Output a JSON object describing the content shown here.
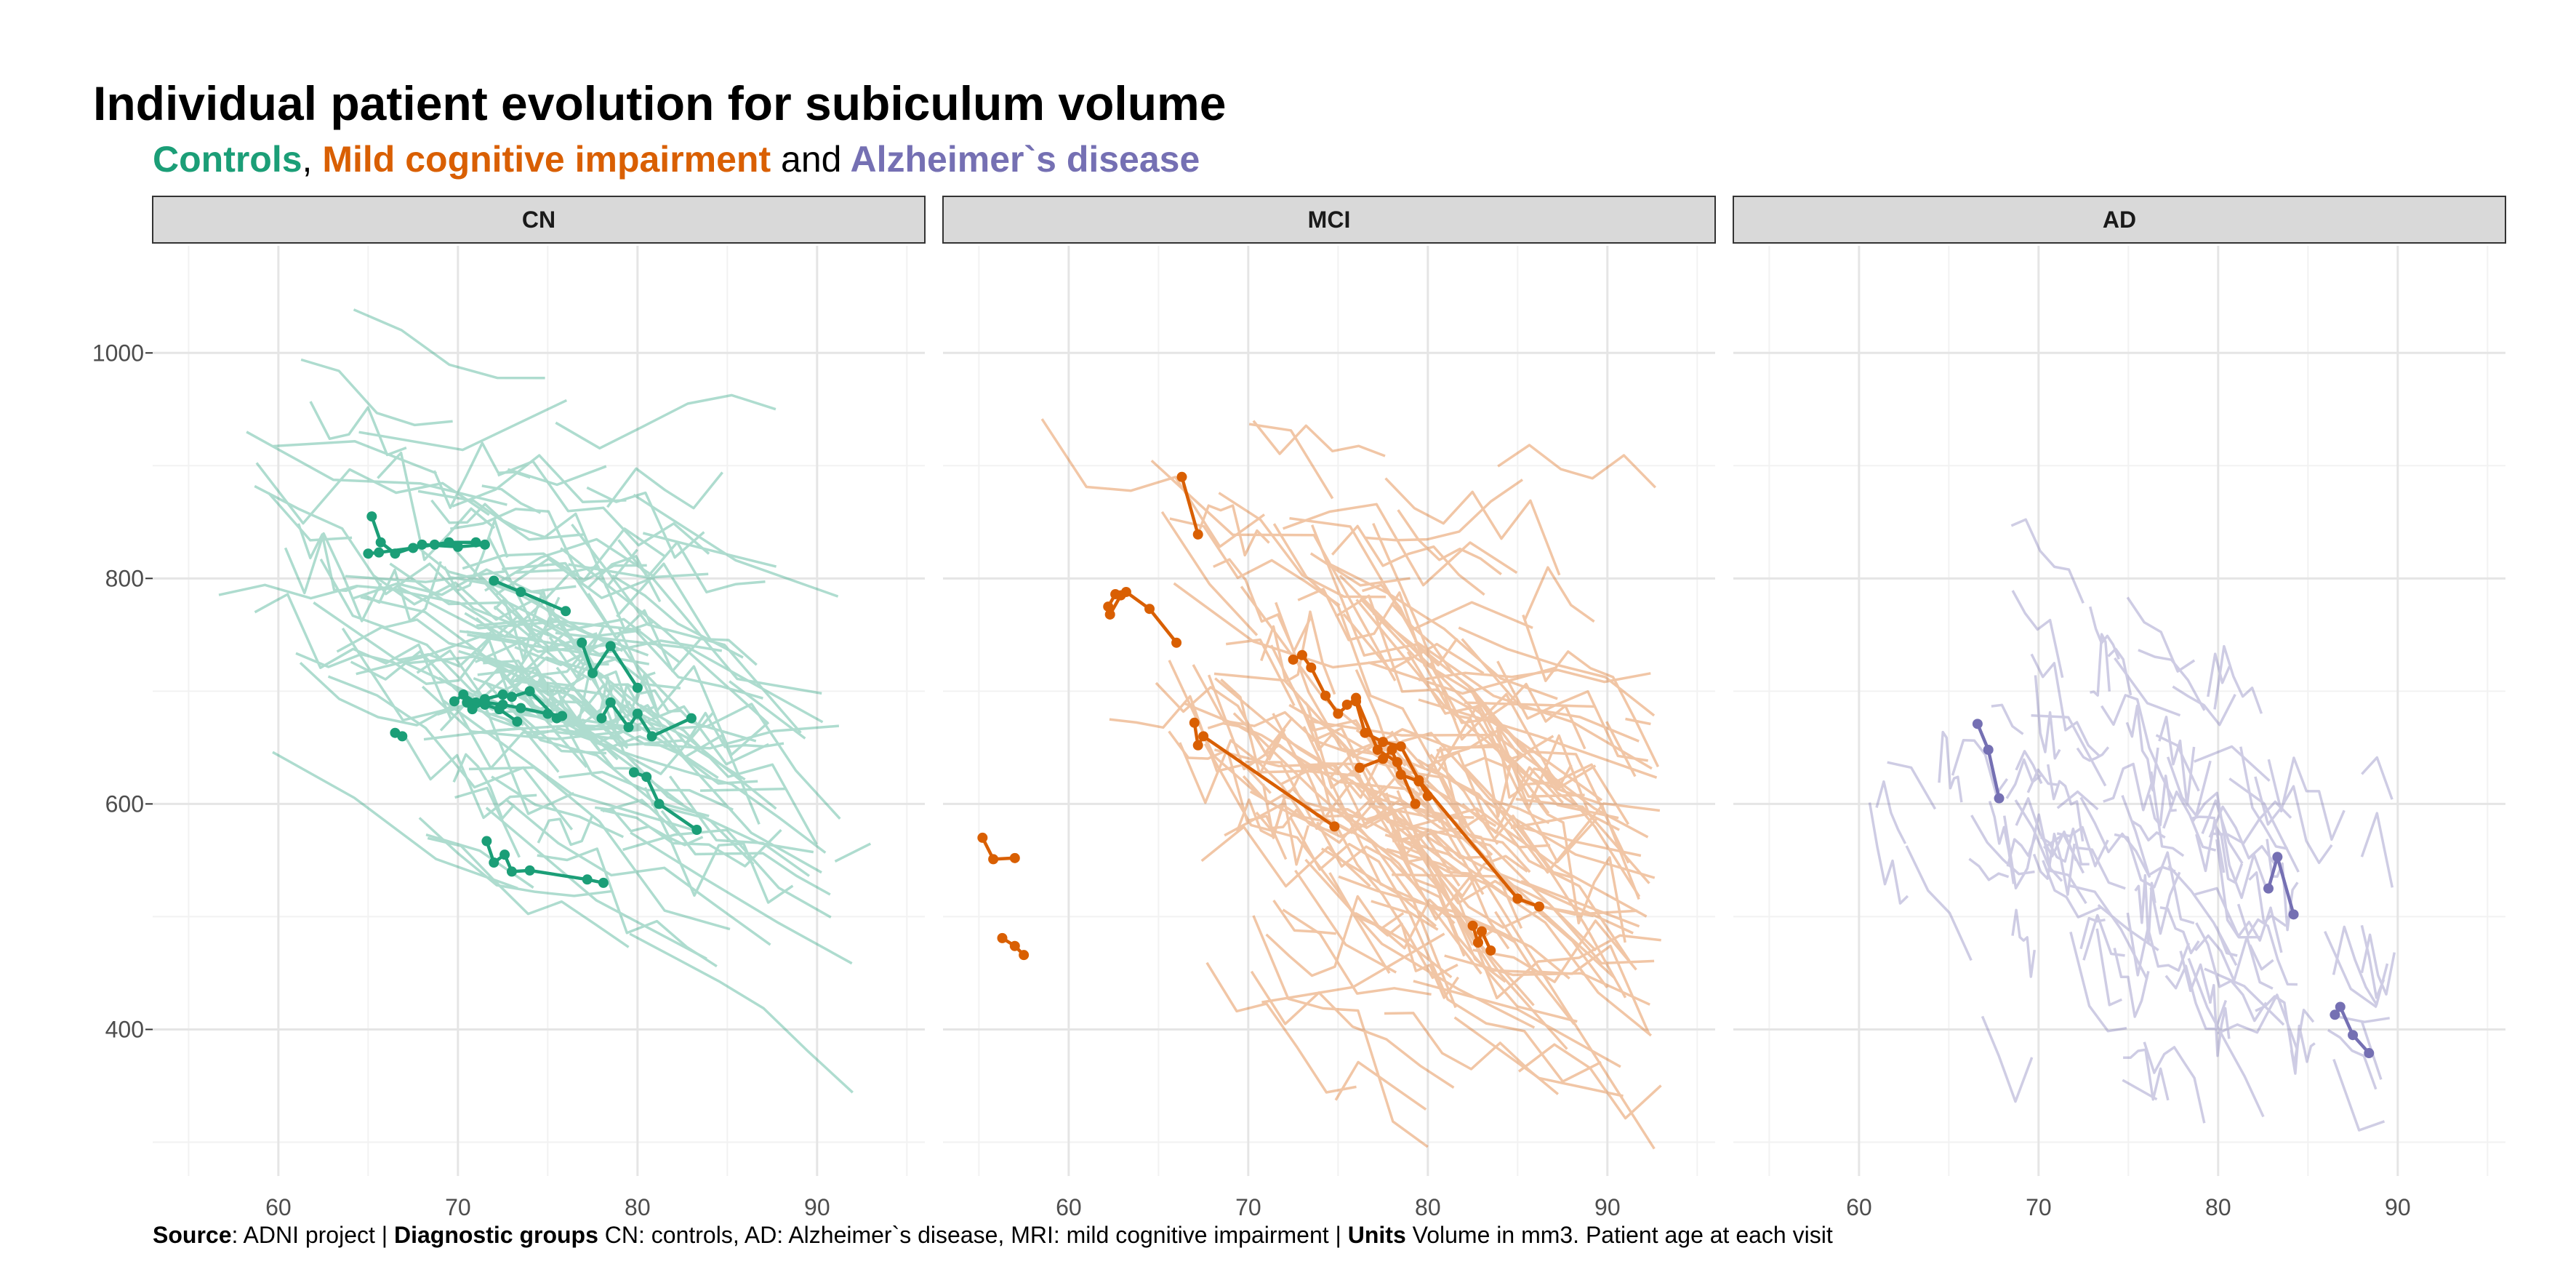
{
  "title": "Individual patient evolution for subiculum volume",
  "subtitle": {
    "controls": "Controls",
    "comma": ",",
    "mci": "Mild cognitive impairment",
    "and": "and",
    "ad": "Alzheimer`s disease"
  },
  "caption": {
    "source_label": "Source",
    "source_text": ": ADNI project | ",
    "groups_label": "Diagnostic groups",
    "groups_text": " CN: controls, AD: Alzheimer`s disease, MRI: mild cognitive impairment | ",
    "units_label": "Units",
    "units_text": " Volume in mm3. Patient age at each visit"
  },
  "colors": {
    "CN": "#1b9e77",
    "MCI": "#d95f02",
    "AD": "#7570b3",
    "strip_bg": "#d9d9d9",
    "grid_major": "#e5e5e5",
    "grid_minor": "#f2f2f2"
  },
  "chart_data": {
    "type": "line",
    "facets": [
      "CN",
      "MCI",
      "AD"
    ],
    "xlim": [
      53,
      96
    ],
    "ylim": [
      270,
      1095
    ],
    "x_ticks": [
      60,
      70,
      80,
      90
    ],
    "y_ticks": [
      400,
      600,
      800,
      1000
    ],
    "grid": true,
    "legend": "none",
    "highlighted": {
      "CN": [
        [
          [
            65.2,
            855
          ],
          [
            65.7,
            832
          ],
          [
            66.5,
            822
          ],
          [
            68.0,
            830
          ],
          [
            70.0,
            828
          ],
          [
            71.5,
            830
          ]
        ],
        [
          [
            65.0,
            822
          ],
          [
            65.6,
            823
          ],
          [
            67.5,
            827
          ],
          [
            68.7,
            830
          ],
          [
            69.5,
            832
          ],
          [
            71.0,
            832
          ]
        ],
        [
          [
            69.8,
            691
          ],
          [
            70.3,
            697
          ],
          [
            71.0,
            690
          ],
          [
            71.5,
            688
          ],
          [
            72.3,
            684
          ],
          [
            73.3,
            673
          ]
        ],
        [
          [
            70.5,
            690
          ],
          [
            71.5,
            693
          ],
          [
            72.5,
            697
          ],
          [
            73.0,
            695
          ],
          [
            74.0,
            700
          ],
          [
            75.5,
            676
          ]
        ],
        [
          [
            70.8,
            684
          ],
          [
            71.5,
            690
          ],
          [
            72.5,
            688
          ],
          [
            73.5,
            685
          ],
          [
            75.0,
            680
          ],
          [
            75.8,
            678
          ]
        ],
        [
          [
            72.0,
            798
          ],
          [
            73.5,
            788
          ],
          [
            76.0,
            771
          ]
        ],
        [
          [
            66.5,
            663
          ],
          [
            66.9,
            660
          ]
        ],
        [
          [
            71.6,
            567
          ],
          [
            72.0,
            548
          ],
          [
            72.6,
            555
          ],
          [
            73.0,
            540
          ],
          [
            74.0,
            541
          ],
          [
            77.2,
            533
          ],
          [
            78.1,
            530
          ]
        ],
        [
          [
            76.9,
            743
          ],
          [
            77.5,
            716
          ],
          [
            78.5,
            740
          ],
          [
            80.0,
            703
          ]
        ],
        [
          [
            78.0,
            676
          ],
          [
            78.5,
            690
          ],
          [
            79.5,
            668
          ],
          [
            80.0,
            680
          ],
          [
            80.8,
            660
          ],
          [
            83.0,
            676
          ]
        ],
        [
          [
            79.8,
            628
          ],
          [
            80.5,
            624
          ],
          [
            81.2,
            600
          ],
          [
            83.3,
            577
          ]
        ]
      ],
      "MCI": [
        [
          [
            55.2,
            570
          ],
          [
            55.8,
            551
          ],
          [
            57.0,
            552
          ]
        ],
        [
          [
            56.3,
            481
          ],
          [
            57.0,
            474
          ],
          [
            57.5,
            466
          ]
        ],
        [
          [
            62.2,
            775
          ],
          [
            62.6,
            786
          ],
          [
            63.2,
            788
          ],
          [
            64.5,
            773
          ],
          [
            66.0,
            743
          ]
        ],
        [
          [
            62.3,
            768
          ],
          [
            62.9,
            785
          ]
        ],
        [
          [
            66.3,
            890
          ],
          [
            67.2,
            839
          ]
        ],
        [
          [
            67.0,
            672
          ],
          [
            67.2,
            652
          ],
          [
            67.5,
            660
          ],
          [
            74.8,
            580
          ]
        ],
        [
          [
            72.5,
            728
          ],
          [
            73.0,
            732
          ],
          [
            73.5,
            721
          ],
          [
            74.3,
            696
          ],
          [
            75.0,
            680
          ],
          [
            76.0,
            694
          ],
          [
            77.2,
            648
          ],
          [
            78.3,
            637
          ],
          [
            79.3,
            600
          ]
        ],
        [
          [
            75.5,
            688
          ],
          [
            76.0,
            691
          ],
          [
            76.5,
            663
          ],
          [
            77.5,
            655
          ],
          [
            78.5,
            651
          ],
          [
            79.5,
            621
          ],
          [
            85.0,
            516
          ],
          [
            86.2,
            509
          ]
        ],
        [
          [
            76.2,
            632
          ],
          [
            77.5,
            640
          ],
          [
            78.0,
            648
          ],
          [
            78.5,
            626
          ],
          [
            79.5,
            620
          ],
          [
            80.0,
            607
          ]
        ],
        [
          [
            82.5,
            492
          ],
          [
            82.8,
            477
          ],
          [
            83.0,
            487
          ],
          [
            83.5,
            470
          ]
        ]
      ],
      "AD": [
        [
          [
            66.6,
            671
          ],
          [
            67.2,
            648
          ],
          [
            67.8,
            605
          ]
        ],
        [
          [
            82.8,
            525
          ],
          [
            83.3,
            553
          ],
          [
            84.2,
            502
          ]
        ],
        [
          [
            86.5,
            413
          ],
          [
            86.8,
            420
          ],
          [
            87.5,
            395
          ],
          [
            88.4,
            379
          ]
        ]
      ]
    }
  }
}
